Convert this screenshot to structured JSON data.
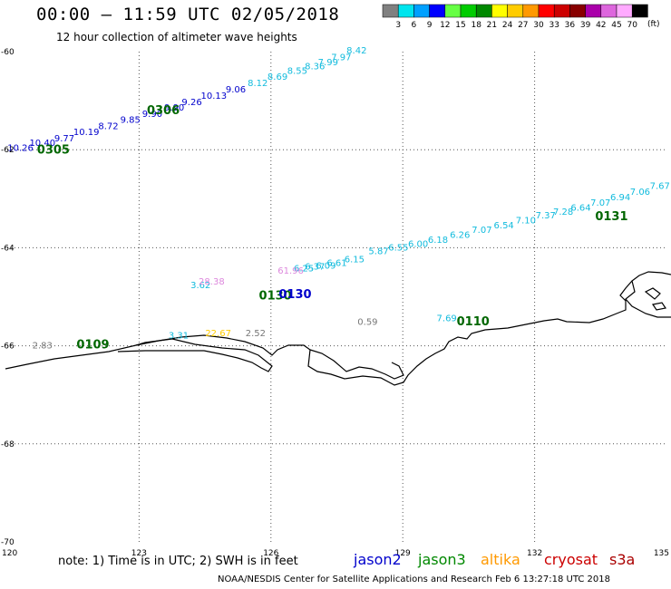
{
  "header": {
    "time_range": "00:00 – 11:59 UTC 02/05/2018",
    "subtitle": "12 hour collection of altimeter wave heights"
  },
  "legend": {
    "unit": "(ft)",
    "bins": [
      {
        "label": "3",
        "color": "#808080"
      },
      {
        "label": "6",
        "color": "#00e5ee"
      },
      {
        "label": "9",
        "color": "#00a0ff"
      },
      {
        "label": "12",
        "color": "#0000ff"
      },
      {
        "label": "15",
        "color": "#66ff44"
      },
      {
        "label": "18",
        "color": "#00cc00"
      },
      {
        "label": "21",
        "color": "#008800"
      },
      {
        "label": "24",
        "color": "#ffff00"
      },
      {
        "label": "27",
        "color": "#ffcc00"
      },
      {
        "label": "30",
        "color": "#ff9900"
      },
      {
        "label": "33",
        "color": "#ff0000"
      },
      {
        "label": "36",
        "color": "#cc0000"
      },
      {
        "label": "39",
        "color": "#880000"
      },
      {
        "label": "42",
        "color": "#aa00aa"
      },
      {
        "label": "45",
        "color": "#dd66dd"
      },
      {
        "label": "70",
        "color": "#ffaaff"
      },
      {
        "label": "",
        "color": "#000000"
      }
    ]
  },
  "axes": {
    "lon_ticks": [
      "120",
      "123",
      "126",
      "129",
      "132",
      "135"
    ],
    "lat_ticks": [
      "-60",
      "-62",
      "-64",
      "-66",
      "-68",
      "-70"
    ],
    "lon_range": [
      120,
      135
    ],
    "lat_range": [
      -70,
      -60
    ]
  },
  "colors": {
    "cyan": "#11bbdd",
    "blue": "#0000cc",
    "green": "#006600",
    "pink": "#dd88dd",
    "gray": "#777777",
    "yellow": "#ffcc00"
  },
  "tracks": [
    {
      "time": "0306",
      "time_pos": [
        123.55,
        -61.28
      ],
      "color": "#006600"
    },
    {
      "time": "0305",
      "time_pos": [
        121.05,
        -62.08
      ],
      "color": "#006600"
    },
    {
      "time": "0131",
      "time_pos": [
        133.75,
        -63.44
      ],
      "color": "#006600"
    },
    {
      "time": "0130",
      "time_pos": [
        126.55,
        -65.03
      ],
      "color": "#0000cc"
    },
    {
      "time": "0110",
      "time_pos": [
        130.6,
        -65.58
      ],
      "color": "#006600"
    },
    {
      "time": "0109",
      "time_pos": [
        121.95,
        -66.05
      ],
      "color": "#006600"
    }
  ],
  "overlap_time": {
    "text": "0130",
    "pos": [
      126.1,
      -65.06
    ],
    "color": "#006600"
  },
  "swh_labels": [
    {
      "text": "8.42",
      "lon": 127.95,
      "lat": -60.04,
      "color": "#11bbdd"
    },
    {
      "text": "7.97",
      "lon": 127.6,
      "lat": -60.18,
      "color": "#11bbdd"
    },
    {
      "text": "7.99",
      "lon": 127.3,
      "lat": -60.28,
      "color": "#11bbdd"
    },
    {
      "text": "8.36",
      "lon": 127.0,
      "lat": -60.36,
      "color": "#11bbdd"
    },
    {
      "text": "8.55",
      "lon": 126.6,
      "lat": -60.45,
      "color": "#11bbdd"
    },
    {
      "text": "8.69",
      "lon": 126.15,
      "lat": -60.57,
      "color": "#11bbdd"
    },
    {
      "text": "8.12",
      "lon": 125.7,
      "lat": -60.7,
      "color": "#11bbdd"
    },
    {
      "text": "9.06",
      "lon": 125.2,
      "lat": -60.83,
      "color": "#0000cc"
    },
    {
      "text": "10.13",
      "lon": 124.7,
      "lat": -60.96,
      "color": "#0000cc"
    },
    {
      "text": "9.26",
      "lon": 124.2,
      "lat": -61.09,
      "color": "#0000cc"
    },
    {
      "text": "9.90",
      "lon": 123.8,
      "lat": -61.2,
      "color": "#0000cc"
    },
    {
      "text": "9.90",
      "lon": 123.3,
      "lat": -61.33,
      "color": "#0000cc"
    },
    {
      "text": "9.85",
      "lon": 122.8,
      "lat": -61.45,
      "color": "#0000cc"
    },
    {
      "text": "8.72",
      "lon": 122.3,
      "lat": -61.58,
      "color": "#0000cc"
    },
    {
      "text": "10.19",
      "lon": 121.8,
      "lat": -61.7,
      "color": "#0000cc"
    },
    {
      "text": "9.77",
      "lon": 121.3,
      "lat": -61.83,
      "color": "#0000cc"
    },
    {
      "text": "10.40",
      "lon": 120.8,
      "lat": -61.92,
      "color": "#0000cc"
    },
    {
      "text": "10.26",
      "lon": 120.3,
      "lat": -62.02,
      "color": "#0000cc"
    },
    {
      "text": "7.67",
      "lon": 134.85,
      "lat": -62.8,
      "color": "#11bbdd"
    },
    {
      "text": "7.06",
      "lon": 134.4,
      "lat": -62.92,
      "color": "#11bbdd"
    },
    {
      "text": "6.94",
      "lon": 133.95,
      "lat": -63.03,
      "color": "#11bbdd"
    },
    {
      "text": "7.07",
      "lon": 133.5,
      "lat": -63.14,
      "color": "#11bbdd"
    },
    {
      "text": "6.64",
      "lon": 133.05,
      "lat": -63.24,
      "color": "#11bbdd"
    },
    {
      "text": "7.28",
      "lon": 132.65,
      "lat": -63.33,
      "color": "#11bbdd"
    },
    {
      "text": "7.37",
      "lon": 132.25,
      "lat": -63.4,
      "color": "#11bbdd"
    },
    {
      "text": "7.10",
      "lon": 131.8,
      "lat": -63.5,
      "color": "#11bbdd"
    },
    {
      "text": "6.54",
      "lon": 131.3,
      "lat": -63.6,
      "color": "#11bbdd"
    },
    {
      "text": "7.07",
      "lon": 130.8,
      "lat": -63.7,
      "color": "#11bbdd"
    },
    {
      "text": "6.26",
      "lon": 130.3,
      "lat": -63.8,
      "color": "#11bbdd"
    },
    {
      "text": "6.18",
      "lon": 129.8,
      "lat": -63.9,
      "color": "#11bbdd"
    },
    {
      "text": "6.00",
      "lon": 129.35,
      "lat": -63.98,
      "color": "#11bbdd"
    },
    {
      "text": "6.55",
      "lon": 128.9,
      "lat": -64.06,
      "color": "#11bbdd"
    },
    {
      "text": "5.87",
      "lon": 128.45,
      "lat": -64.13,
      "color": "#11bbdd"
    },
    {
      "text": "6.15",
      "lon": 127.9,
      "lat": -64.3,
      "color": "#11bbdd"
    },
    {
      "text": "6.61",
      "lon": 127.5,
      "lat": -64.37,
      "color": "#11bbdd"
    },
    {
      "text": "6.09",
      "lon": 127.25,
      "lat": -64.43,
      "color": "#11bbdd"
    },
    {
      "text": "6.37",
      "lon": 127.0,
      "lat": -64.45,
      "color": "#11bbdd"
    },
    {
      "text": "6.25",
      "lon": 126.75,
      "lat": -64.48,
      "color": "#11bbdd"
    },
    {
      "text": "61.96",
      "lon": 126.45,
      "lat": -64.53,
      "color": "#dd88dd"
    },
    {
      "text": "3.62",
      "lon": 124.4,
      "lat": -64.82,
      "color": "#11bbdd"
    },
    {
      "text": "28.38",
      "lon": 124.65,
      "lat": -64.75,
      "color": "#dd88dd"
    },
    {
      "text": "0.59",
      "lon": 128.2,
      "lat": -65.57,
      "color": "#777777"
    },
    {
      "text": "7.69",
      "lon": 130.0,
      "lat": -65.5,
      "color": "#11bbdd"
    },
    {
      "text": "2.83",
      "lon": 120.8,
      "lat": -66.05,
      "color": "#777777"
    },
    {
      "text": "3.31",
      "lon": 123.9,
      "lat": -65.85,
      "color": "#11bbdd"
    },
    {
      "text": "22.67",
      "lon": 124.8,
      "lat": -65.8,
      "color": "#ffcc00"
    },
    {
      "text": "2.52",
      "lon": 125.65,
      "lat": -65.8,
      "color": "#777777"
    }
  ],
  "footer": {
    "note": "note: 1) Time is in UTC; 2) SWH is in feet",
    "satellites": [
      "jason2",
      "jason3",
      "altika",
      "cryosat",
      "s3a"
    ],
    "credit": "NOAA/NESDIS Center for Satellite Applications and Research    Feb  6 13:27:18 UTC 2018"
  }
}
